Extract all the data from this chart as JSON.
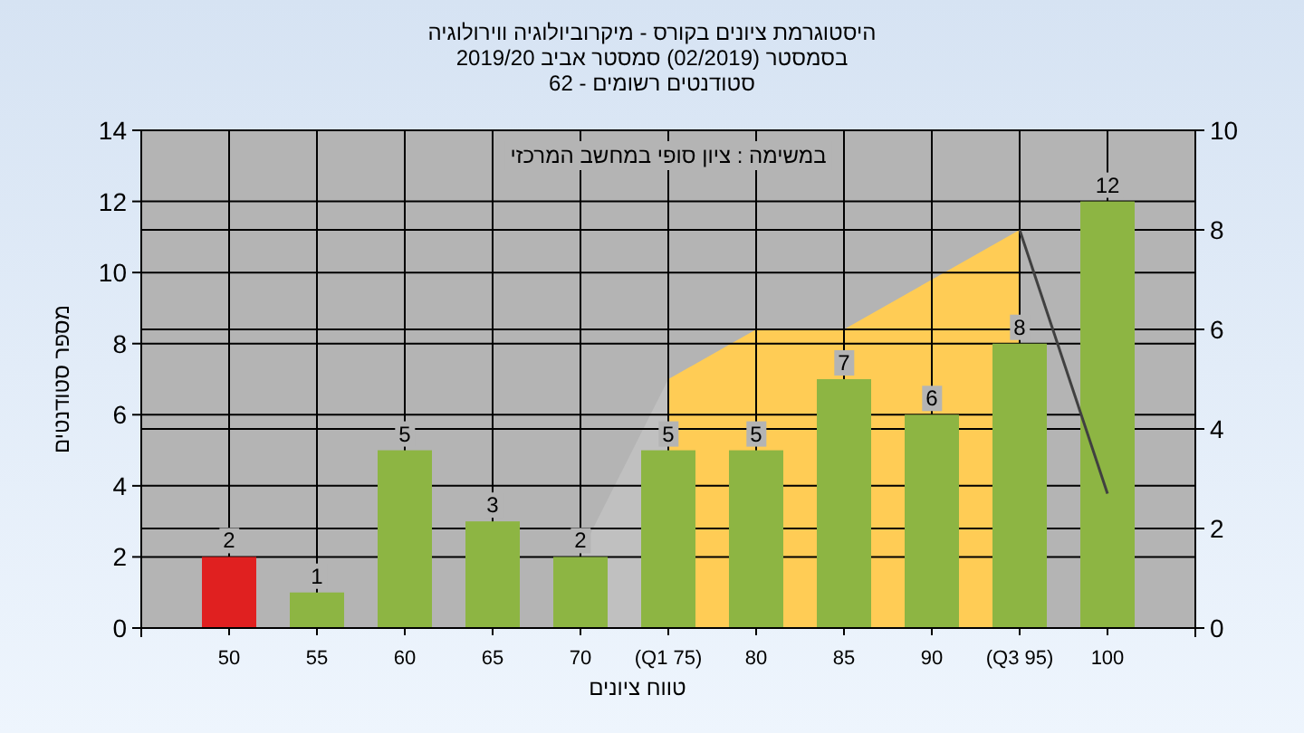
{
  "chart_data": {
    "type": "bar",
    "title": "היסטוגרמת ציונים בקורס - מיקרוביולוגיה ווירולוגיה\nבסמסטר  (02/2019)  סמסטר אביב 2019/20\nסטודנטים רשומים - 62",
    "xlabel": "טווח ציונים",
    "ylabel": "מספר סטודנטים",
    "annotations": [
      "במשימה : ציון סופי במחשב המרכזי"
    ],
    "categories": [
      "50",
      "55",
      "60",
      "65",
      "70",
      "(Q1 75)",
      "80",
      "85",
      "90",
      "(Q3 95)",
      "100"
    ],
    "series": [
      {
        "type": "area",
        "axis": "y2",
        "color": "#c0c0c0",
        "values": [
          null,
          null,
          null,
          null,
          1.5,
          5,
          null,
          null,
          null,
          null,
          null
        ]
      },
      {
        "type": "area",
        "axis": "y2",
        "color": "#ffcc55",
        "values": [
          null,
          null,
          null,
          null,
          null,
          5,
          6,
          6,
          7,
          8,
          null
        ]
      },
      {
        "type": "line",
        "axis": "y2",
        "color": "#404040",
        "values": [
          null,
          null,
          null,
          null,
          null,
          null,
          null,
          null,
          null,
          8,
          2.7
        ]
      },
      {
        "colors": [
          "#e02020",
          "#8db543",
          "#8db543",
          "#8db543",
          "#8db543",
          "#8db543",
          "#8db543",
          "#8db543",
          "#8db543",
          "#8db543",
          "#8db543"
        ],
        "values": [
          2,
          1,
          5,
          3,
          2,
          5,
          5,
          7,
          6,
          8,
          12
        ],
        "value_labels": [
          "2",
          "1",
          "5",
          "3",
          "2",
          "5",
          "5",
          "7",
          "6",
          "8",
          "12"
        ]
      }
    ],
    "ylim": [
      0,
      14
    ],
    "yticks": [
      0,
      2,
      4,
      6,
      8,
      10,
      12,
      14
    ],
    "y2lim": [
      0,
      10
    ],
    "y2ticks": [
      0,
      2,
      4,
      6,
      8,
      10
    ],
    "grid": true
  }
}
